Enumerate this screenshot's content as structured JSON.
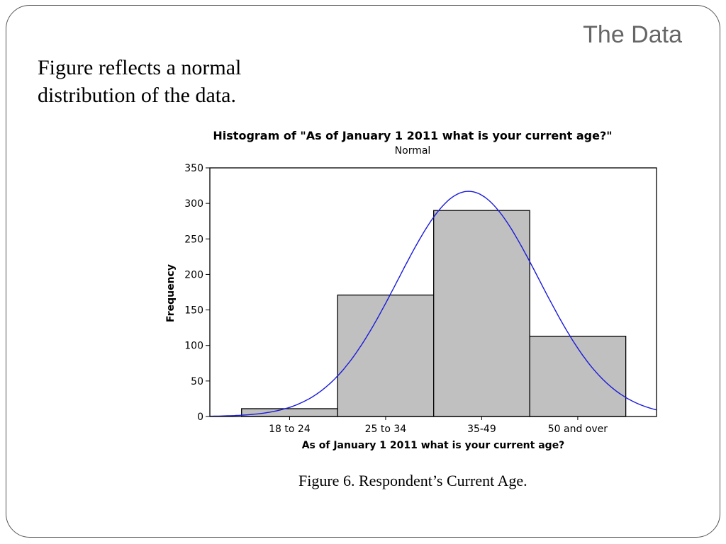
{
  "slide": {
    "title": "The Data",
    "body_lines": [
      "Figure reflects a normal",
      "distribution of the data."
    ],
    "caption": "Figure 6. Respondent’s Current Age."
  },
  "chart_data": {
    "type": "bar",
    "title": "Histogram of \"As of January 1 2011 what is your current age?\"",
    "subtitle": "Normal",
    "xlabel": "As of January 1 2011 what is your current age?",
    "ylabel": "Frequency",
    "categories": [
      "18 to 24",
      "25 to 34",
      "35-49",
      "50 and over"
    ],
    "values": [
      11,
      171,
      290,
      113
    ],
    "ylim": [
      0,
      350
    ],
    "yticks": [
      0,
      50,
      100,
      150,
      200,
      250,
      300,
      350
    ],
    "grid": false,
    "bar_color": "#c0c0c0",
    "bar_edge_color": "#000000",
    "fit_curve": {
      "type": "normal",
      "color": "#1a1adb",
      "peak_value": 317
    }
  }
}
